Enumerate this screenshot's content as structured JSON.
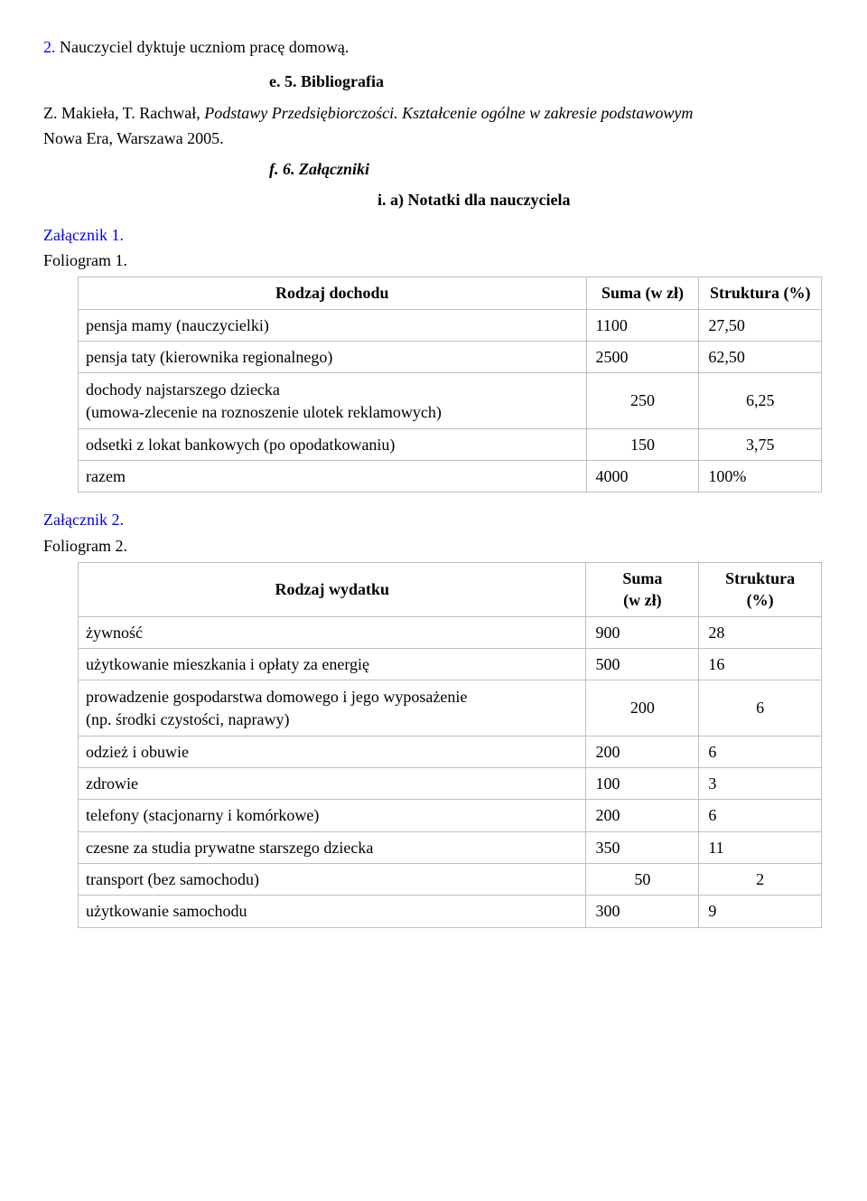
{
  "top_item": {
    "number": "2.",
    "text": "Nauczyciel dyktuje uczniom pracę domową."
  },
  "heading_e": {
    "prefix": "e.",
    "label": "5. Bibliografia"
  },
  "biblio": {
    "line1_prefix": "Z. Makieła, T. Rachwał, ",
    "line1_italic": "Podstawy Przedsiębiorczości. Kształcenie ogólne w zakresie podstawowym",
    "line2": "Nowa Era, Warszawa 2005."
  },
  "heading_f": {
    "prefix": "f.",
    "label": "6. Załączniki"
  },
  "heading_i": {
    "prefix": "i.",
    "label": "a) Notatki dla nauczyciela"
  },
  "zal1": {
    "label": "Załącznik 1."
  },
  "fol1": {
    "label": "Foliogram 1."
  },
  "table1": {
    "headers": [
      "Rodzaj dochodu",
      "Suma (w zł)",
      "Struktura (%)"
    ],
    "rows": [
      {
        "label": "pensja mamy (nauczycielki)",
        "sum": "1100",
        "pct": "27,50"
      },
      {
        "label": "pensja taty (kierownika regionalnego)",
        "sum": "2500",
        "pct": "62,50"
      },
      {
        "label": "dochody najstarszego dziecka",
        "label2": "(umowa-zlecenie na roznoszenie ulotek reklamowych)",
        "sum": "250",
        "pct": "6,25",
        "center": true
      },
      {
        "label": "odsetki z lokat bankowych (po opodatkowaniu)",
        "sum": "150",
        "pct": "3,75",
        "center": true
      },
      {
        "label": "razem",
        "sum": "4000",
        "pct": "100%"
      }
    ]
  },
  "zal2": {
    "label": "Załącznik 2."
  },
  "fol2": {
    "label": "Foliogram 2."
  },
  "table2": {
    "headers": [
      "Rodzaj wydatku",
      "Suma",
      "(w zł)",
      "Struktura",
      "(%)"
    ],
    "rows": [
      {
        "label": "żywność",
        "sum": "900",
        "pct": "28"
      },
      {
        "label": "użytkowanie mieszkania i opłaty za energię",
        "sum": "500",
        "pct": "16"
      },
      {
        "label": "prowadzenie gospodarstwa domowego i jego wyposażenie",
        "label2": "(np. środki czystości, naprawy)",
        "sum": "200",
        "pct": "6",
        "center": true
      },
      {
        "label": "odzież i obuwie",
        "sum": "200",
        "pct": "6"
      },
      {
        "label": "zdrowie",
        "sum": "100",
        "pct": "3"
      },
      {
        "label": "telefony (stacjonarny i komórkowe)",
        "sum": "200",
        "pct": "6"
      },
      {
        "label": "czesne za studia prywatne starszego dziecka",
        "sum": "350",
        "pct": "11"
      },
      {
        "label": "transport (bez samochodu)",
        "sum": "50",
        "pct": "2",
        "center": true
      },
      {
        "label": "użytkowanie samochodu",
        "sum": "300",
        "pct": "9"
      }
    ]
  }
}
